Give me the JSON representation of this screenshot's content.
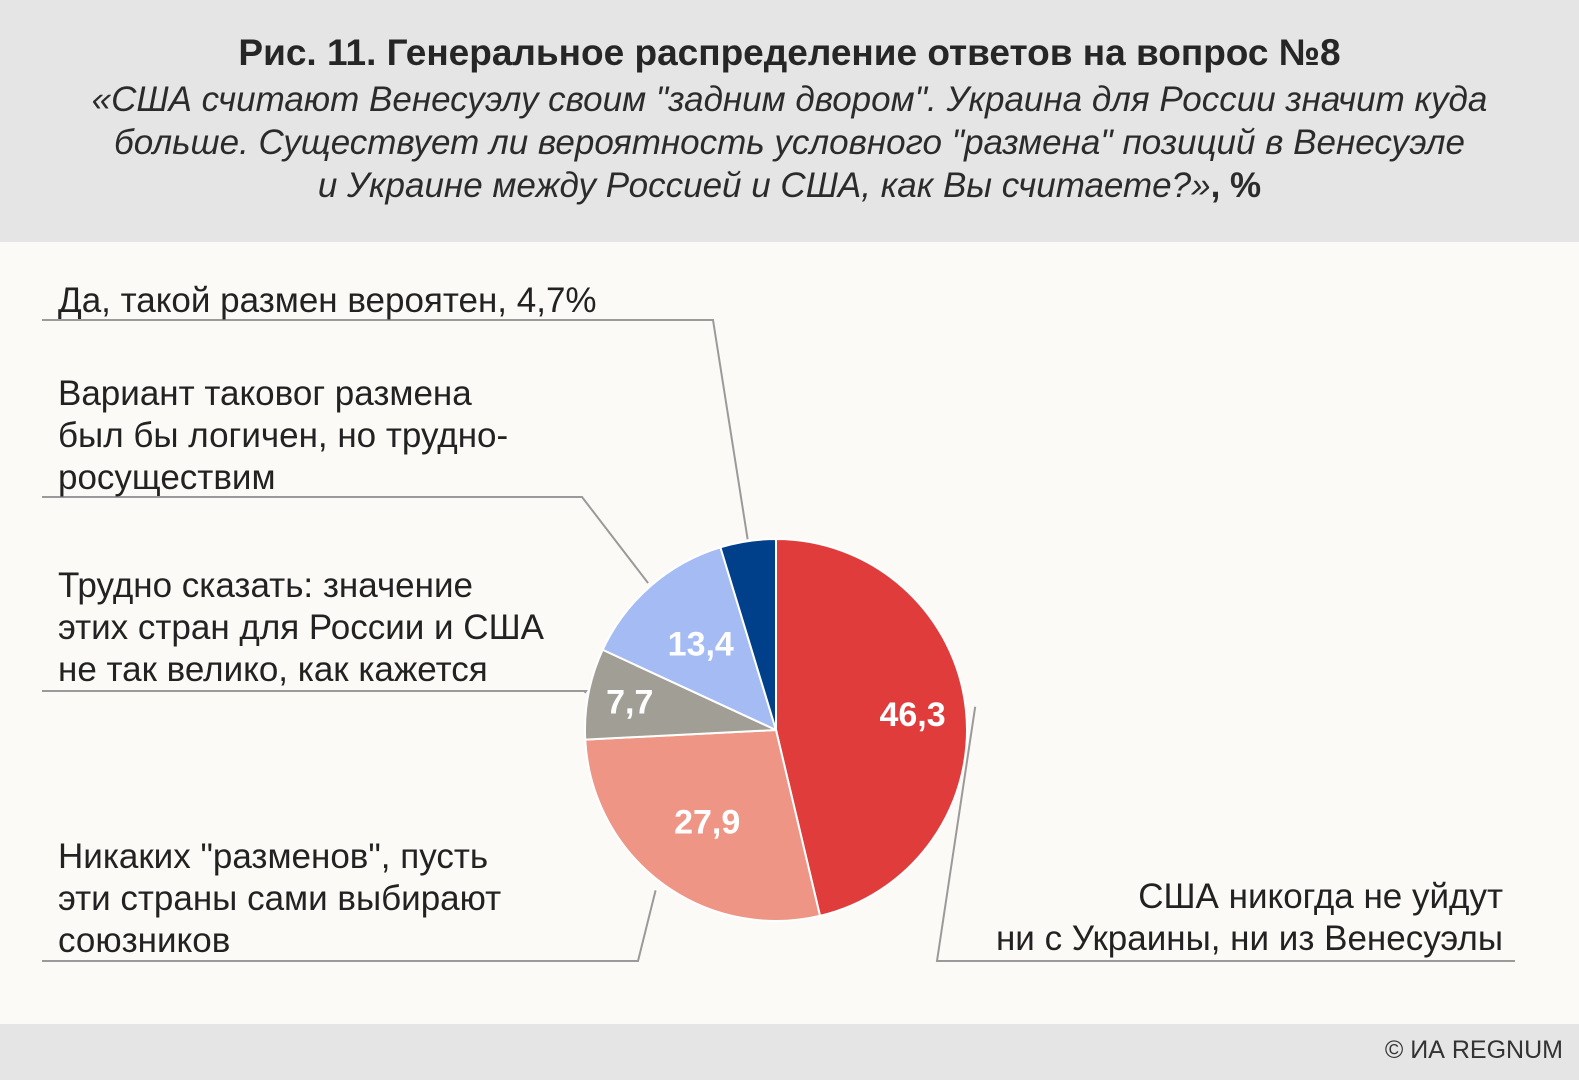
{
  "header": {
    "title": "Рис. 11. Генеральное распределение ответов на вопрос №8",
    "question_line1": "«США считают Венесуэлу своим \"задним двором\". Украина для России значит куда",
    "question_line2": "больше. Существует ли вероятность условного \"размена\" позиций в Венесуэле",
    "question_line3": "и Украине между Россией и США, как Вы считаете?»",
    "unit": ", %"
  },
  "footer": {
    "credit": "© ИА REGNUM"
  },
  "chart_data": {
    "type": "pie",
    "title": "Рис. 11. Генеральное распределение ответов на вопрос №8",
    "slices": [
      {
        "name": "США никогда не уйдут ни с Украины, ни из Венесуэлы",
        "value": 46.3,
        "value_label": "46,3",
        "color": "#e03c3c",
        "label_lines": [
          "США никогда не уйдут",
          "ни с Украины, ни из Венесуэлы"
        ]
      },
      {
        "name": "Никаких \"разменов\", пусть эти страны сами выбирают союзников",
        "value": 27.9,
        "value_label": "27,9",
        "color": "#ee9585",
        "label_lines": [
          "Никаких \"разменов\", пусть",
          "эти страны сами выбирают",
          "союзников"
        ]
      },
      {
        "name": "Трудно сказать: значение этих стран для России и США не так велико, как кажется",
        "value": 7.7,
        "value_label": "7,7",
        "color": "#a19e96",
        "label_lines": [
          "Трудно сказать: значение",
          "этих стран для России и США",
          "не так велико, как кажется"
        ]
      },
      {
        "name": "Вариант таковог размена был бы логичен, но трудноросуществим",
        "value": 13.4,
        "value_label": "13,4",
        "color": "#a4bbf3",
        "label_lines": [
          "Вариант таковог размена",
          "был бы логичен, но трудно-",
          "росуществим"
        ]
      },
      {
        "name": "Да, такой размен вероятен",
        "value": 4.7,
        "value_label": "",
        "color": "#003f8a",
        "label_lines": [
          "Да, такой размен вероятен, 4,7%"
        ]
      }
    ]
  }
}
